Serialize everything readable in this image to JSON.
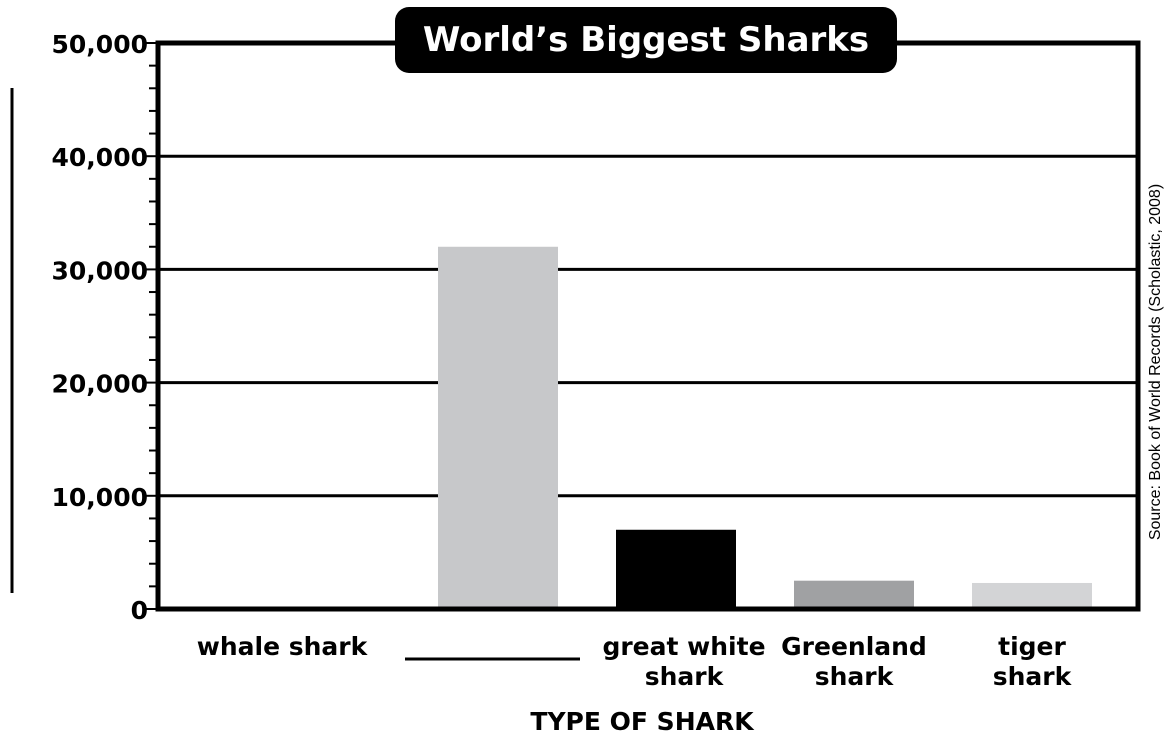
{
  "chart_data": {
    "type": "bar",
    "title": "World’s Biggest Sharks",
    "xlabel": "TYPE OF SHARK",
    "ylabel": "",
    "ylim": [
      0,
      50000
    ],
    "yticks": [
      {
        "value": 0,
        "label": "0"
      },
      {
        "value": 10000,
        "label": "10,000"
      },
      {
        "value": 20000,
        "label": "20,000"
      },
      {
        "value": 30000,
        "label": "30,000"
      },
      {
        "value": 40000,
        "label": "40,000"
      },
      {
        "value": 50000,
        "label": "50,000"
      }
    ],
    "minor_tick_step": 2000,
    "grid": true,
    "categories": [
      {
        "lines": [
          "whale shark"
        ],
        "blank": false
      },
      {
        "lines": [],
        "blank": true
      },
      {
        "lines": [
          "great white",
          "shark"
        ],
        "blank": false
      },
      {
        "lines": [
          "Greenland",
          "shark"
        ],
        "blank": false
      },
      {
        "lines": [
          "tiger",
          "shark"
        ],
        "blank": false
      }
    ],
    "values": [
      null,
      32000,
      7000,
      2500,
      2300
    ],
    "colors": [
      "#ffffff",
      "#c7c8ca",
      "#000000",
      "#a0a1a3",
      "#d3d4d6"
    ],
    "source": "Source: Book of World Records (Scholastic, 2008)"
  }
}
